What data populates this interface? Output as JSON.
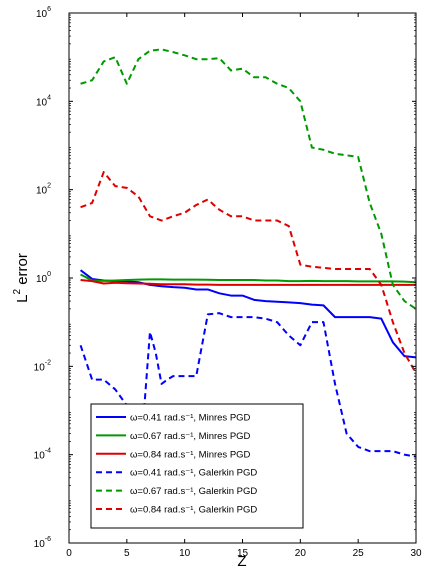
{
  "chart_data": {
    "type": "line",
    "title": "",
    "xlabel": "Z",
    "ylabel": "L2 error",
    "ylabel_base": "L",
    "ylabel_sup": "2",
    "ylabel_rest": " error",
    "xlim": [
      0,
      30
    ],
    "ylim": [
      1e-06,
      1000000.0
    ],
    "yscale": "log",
    "grid": false,
    "legend_position": "bottom-left",
    "x_ticks": [
      0,
      5,
      10,
      15,
      20,
      25,
      30
    ],
    "y_ticks": [
      {
        "value": 1e-06,
        "base": "10",
        "exp": "-6"
      },
      {
        "value": 0.0001,
        "base": "10",
        "exp": "-4"
      },
      {
        "value": 0.01,
        "base": "10",
        "exp": "-2"
      },
      {
        "value": 1,
        "base": "10",
        "exp": "0"
      },
      {
        "value": 100.0,
        "base": "10",
        "exp": "2"
      },
      {
        "value": 10000.0,
        "base": "10",
        "exp": "4"
      },
      {
        "value": 1000000.0,
        "base": "10",
        "exp": "6"
      }
    ],
    "series": [
      {
        "name": "ω=0.41 rad.s⁻¹, Minres PGD",
        "color": "#0000ff",
        "dash": "solid",
        "x": [
          1,
          2,
          3,
          4,
          5,
          6,
          7,
          8,
          9,
          10,
          11,
          12,
          13,
          14,
          15,
          16,
          17,
          18,
          19,
          20,
          21,
          22,
          23,
          24,
          25,
          26,
          27,
          28,
          29,
          30
        ],
        "y": [
          1.5,
          0.95,
          0.88,
          0.85,
          0.84,
          0.8,
          0.7,
          0.65,
          0.62,
          0.6,
          0.55,
          0.55,
          0.45,
          0.4,
          0.4,
          0.32,
          0.3,
          0.29,
          0.28,
          0.27,
          0.25,
          0.24,
          0.13,
          0.13,
          0.13,
          0.13,
          0.12,
          0.035,
          0.017,
          0.016
        ]
      },
      {
        "name": "ω=0.67 rad.s⁻¹, Minres PGD",
        "color": "#009900",
        "dash": "solid",
        "x": [
          1,
          2,
          3,
          4,
          5,
          6,
          7,
          8,
          9,
          10,
          11,
          12,
          13,
          14,
          15,
          16,
          17,
          18,
          19,
          20,
          21,
          22,
          23,
          24,
          25,
          26,
          27,
          28,
          29,
          30
        ],
        "y": [
          1.2,
          0.88,
          0.86,
          0.88,
          0.9,
          0.92,
          0.93,
          0.93,
          0.92,
          0.92,
          0.92,
          0.91,
          0.9,
          0.9,
          0.9,
          0.9,
          0.88,
          0.88,
          0.85,
          0.85,
          0.86,
          0.85,
          0.85,
          0.85,
          0.84,
          0.84,
          0.84,
          0.84,
          0.83,
          0.8
        ]
      },
      {
        "name": "ω=0.84 rad.s⁻¹, Minres PGD",
        "color": "#dd0000",
        "dash": "solid",
        "x": [
          1,
          2,
          3,
          4,
          5,
          6,
          7,
          8,
          9,
          10,
          11,
          12,
          13,
          14,
          15,
          16,
          17,
          18,
          19,
          20,
          21,
          22,
          23,
          24,
          25,
          26,
          27,
          28,
          29,
          30
        ],
        "y": [
          0.9,
          0.85,
          0.75,
          0.78,
          0.76,
          0.75,
          0.74,
          0.72,
          0.72,
          0.72,
          0.71,
          0.71,
          0.7,
          0.7,
          0.7,
          0.7,
          0.7,
          0.7,
          0.7,
          0.7,
          0.7,
          0.7,
          0.7,
          0.7,
          0.7,
          0.7,
          0.7,
          0.7,
          0.7,
          0.7
        ]
      },
      {
        "name": "ω=0.41 rad.s⁻¹, Galerkin PGD",
        "color": "#0000ff",
        "dash": "dashed",
        "x": [
          1,
          2,
          3,
          4,
          5,
          6,
          6.5,
          7,
          7.5,
          8,
          8.5,
          9,
          10,
          11,
          12,
          13,
          14,
          15,
          16,
          17,
          18,
          19,
          20,
          21,
          22,
          23,
          24,
          25,
          26,
          27,
          28,
          29,
          30
        ],
        "y": [
          0.03,
          0.005,
          0.005,
          0.003,
          0.0013,
          0.0012,
          0.0011,
          0.06,
          0.02,
          0.004,
          0.005,
          0.006,
          0.006,
          0.006,
          0.15,
          0.16,
          0.13,
          0.13,
          0.13,
          0.12,
          0.1,
          0.05,
          0.03,
          0.1,
          0.1,
          0.004,
          0.0003,
          0.00015,
          0.00012,
          0.00012,
          0.00012,
          0.0001,
          9e-05
        ]
      },
      {
        "name": "ω=0.67 rad.s⁻¹, Galerkin PGD",
        "color": "#009900",
        "dash": "dashed",
        "x": [
          1,
          2,
          3,
          4,
          5,
          6,
          7,
          8,
          9,
          10,
          11,
          12,
          13,
          14,
          15,
          16,
          17,
          18,
          19,
          20,
          21,
          22,
          23,
          24,
          25,
          26,
          27,
          28,
          29,
          30
        ],
        "y": [
          25000,
          30000,
          80000,
          100000,
          25000,
          90000,
          140000,
          150000,
          130000,
          110000,
          90000,
          90000,
          95000,
          50000,
          55000,
          35000,
          35000,
          25000,
          20000,
          10000,
          900,
          800,
          650,
          600,
          550,
          50,
          10,
          0.7,
          0.3,
          0.2
        ]
      },
      {
        "name": "ω=0.84 rad.s⁻¹, Galerkin PGD",
        "color": "#dd0000",
        "dash": "dashed",
        "x": [
          1,
          2,
          3,
          4,
          5,
          6,
          7,
          8,
          9,
          10,
          11,
          12,
          13,
          14,
          15,
          16,
          17,
          18,
          19,
          20,
          21,
          22,
          23,
          24,
          25,
          26,
          27,
          28,
          29,
          30
        ],
        "y": [
          40,
          50,
          250,
          120,
          110,
          70,
          25,
          20,
          25,
          30,
          45,
          60,
          35,
          25,
          25,
          20,
          20,
          20,
          15,
          2,
          1.8,
          1.7,
          1.6,
          1.6,
          1.6,
          1.6,
          0.7,
          0.1,
          0.02,
          0.007
        ]
      }
    ]
  }
}
